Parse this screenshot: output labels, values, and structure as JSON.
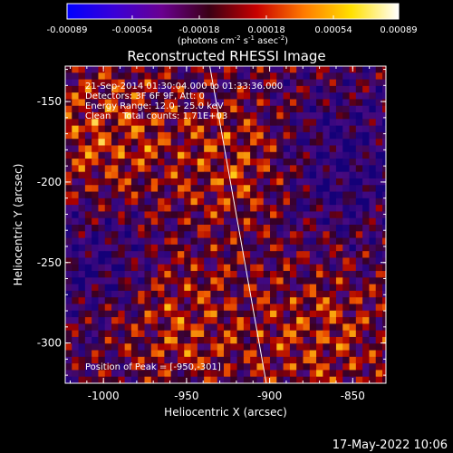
{
  "colorbar": {
    "ticks": [
      "-0.00089",
      "-0.00054",
      "-0.00018",
      "0.00018",
      "0.00054",
      "0.00089"
    ],
    "tick_values": [
      -0.00089,
      -0.00054,
      -0.00018,
      0.00018,
      0.00054,
      0.00089
    ],
    "range": [
      -0.00089,
      0.00089
    ],
    "unit_parts": [
      "(photons cm",
      "-2",
      " s",
      "-1",
      " asec",
      "-2",
      ")"
    ],
    "stops": [
      "#0000ff",
      "#3a00d8",
      "#6a0090",
      "#3a0015",
      "#c80000",
      "#ff7a00",
      "#ffe000",
      "#ffffff"
    ]
  },
  "title": "Reconstructed RHESSI Image",
  "annotations": [
    "21-Sep-2014 01:30:04.000 to 01:33:36.000",
    "Detectors: 3F 6F 9F, Att: 0",
    "Energy Range: 12.0 - 25.0 keV",
    "Clean    Total counts: 1.71E+03"
  ],
  "peak_label": "Position of Peak = [-950,-301]",
  "x_axis": {
    "label": "Heliocentric X (arcsec)",
    "range": [
      -1023,
      -830
    ],
    "ticks": [
      "-1000",
      "-950",
      "-900",
      "-850"
    ],
    "tick_values": [
      -1000,
      -950,
      -900,
      -850
    ]
  },
  "y_axis": {
    "label": "Heliocentric Y (arcsec)",
    "range": [
      -325,
      -128
    ],
    "ticks": [
      "-150",
      "-200",
      "-250",
      "-300"
    ],
    "tick_values": [
      -150,
      -200,
      -250,
      -300
    ]
  },
  "limb_line": {
    "x": [
      -936,
      -902
    ],
    "y": [
      -128,
      -325
    ]
  },
  "timestamp": "17-May-2022 10:06"
}
